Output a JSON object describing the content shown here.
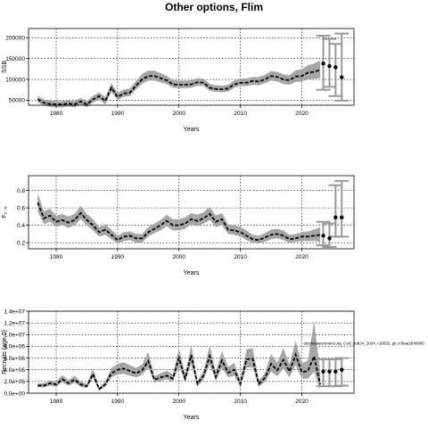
{
  "figure": {
    "title": "Other options, Flim"
  },
  "chart_data": [
    {
      "type": "line",
      "ylabel": "SSB",
      "xlabel": "Years",
      "xlim": [
        1975.5,
        2028.5
      ],
      "ylim": [
        38000,
        222000
      ],
      "xticks": [
        1980,
        1990,
        2000,
        2010,
        2020
      ],
      "yticks": [
        50000,
        100000,
        150000,
        200000
      ],
      "ytick_labels": [
        "50000",
        "100000",
        "150000",
        "200000"
      ],
      "grid": true,
      "annotation": "",
      "series": [
        {
          "x": [
            1977,
            1978,
            1979,
            1980,
            1981,
            1982,
            1983,
            1984,
            1985,
            1986,
            1987,
            1988,
            1989,
            1990,
            1991,
            1992,
            1993,
            1994,
            1995,
            1996,
            1997,
            1998,
            1999,
            2000,
            2001,
            2002,
            2003,
            2004,
            2005,
            2006,
            2007,
            2008,
            2009,
            2010,
            2011,
            2012,
            2013,
            2014,
            2015,
            2016,
            2017,
            2018,
            2019,
            2020,
            2021,
            2022,
            2023
          ],
          "y": [
            52000,
            44000,
            41000,
            40000,
            40000,
            42000,
            40000,
            47000,
            40000,
            52000,
            60000,
            48000,
            80000,
            58000,
            66000,
            68000,
            85000,
            100000,
            108000,
            108000,
            103000,
            98000,
            88000,
            87000,
            87000,
            88000,
            93000,
            92000,
            80000,
            77000,
            76000,
            78000,
            88000,
            92000,
            92000,
            96000,
            95000,
            100000,
            108000,
            106000,
            100000,
            98000,
            107000,
            108000,
            116000,
            118000,
            123000
          ],
          "lower": [
            45000,
            37000,
            34000,
            33000,
            33000,
            35000,
            33000,
            40000,
            33000,
            44000,
            52000,
            40000,
            70000,
            50000,
            58000,
            60000,
            76000,
            90000,
            97000,
            97000,
            93000,
            89000,
            80000,
            79000,
            79000,
            80000,
            85000,
            84000,
            73000,
            70000,
            69000,
            71000,
            80000,
            84000,
            84000,
            87000,
            86000,
            91000,
            97000,
            95000,
            89000,
            87000,
            94000,
            95000,
            100000,
            101000,
            104000
          ],
          "upper": [
            60000,
            52000,
            49000,
            48000,
            48000,
            50000,
            48000,
            55000,
            48000,
            61000,
            69000,
            57000,
            91000,
            67000,
            76000,
            78000,
            96000,
            113000,
            121000,
            121000,
            115000,
            109000,
            98000,
            97000,
            97000,
            98000,
            103000,
            102000,
            89000,
            86000,
            85000,
            87000,
            97000,
            102000,
            102000,
            106000,
            106000,
            111000,
            120000,
            118000,
            112000,
            110000,
            122000,
            124000,
            134000,
            138000,
            145000
          ]
        }
      ],
      "projections": [
        {
          "x": 2023.5,
          "y": 138000,
          "lower": 75000,
          "upper": 205000
        },
        {
          "x": 2024.5,
          "y": 132000,
          "lower": 82000,
          "upper": 197000
        },
        {
          "x": 2025.5,
          "y": 129000,
          "lower": 60000,
          "upper": 185000
        },
        {
          "x": 2026.5,
          "y": 105000,
          "lower": 49000,
          "upper": 210000
        }
      ]
    },
    {
      "type": "line",
      "ylabel": "F₂₋₆",
      "xlabel": "Years",
      "xlim": [
        1975.5,
        2028.5
      ],
      "ylim": [
        0.13,
        0.97
      ],
      "xticks": [
        1980,
        1990,
        2000,
        2010,
        2020
      ],
      "yticks": [
        0.2,
        0.4,
        0.6,
        0.8
      ],
      "ytick_labels": [
        "0.2",
        "0.4",
        "0.6",
        "0.8"
      ],
      "grid": true,
      "annotation": "",
      "series": [
        {
          "x": [
            1977,
            1978,
            1979,
            1980,
            1981,
            1982,
            1983,
            1984,
            1985,
            1986,
            1987,
            1988,
            1989,
            1990,
            1991,
            1992,
            1993,
            1994,
            1995,
            1996,
            1997,
            1998,
            1999,
            2000,
            2001,
            2002,
            2003,
            2004,
            2005,
            2006,
            2007,
            2008,
            2009,
            2010,
            2011,
            2012,
            2013,
            2014,
            2015,
            2016,
            2017,
            2018,
            2019,
            2020,
            2021,
            2022,
            2023
          ],
          "y": [
            0.66,
            0.48,
            0.51,
            0.44,
            0.46,
            0.43,
            0.46,
            0.54,
            0.46,
            0.4,
            0.32,
            0.35,
            0.29,
            0.23,
            0.27,
            0.28,
            0.25,
            0.25,
            0.32,
            0.36,
            0.4,
            0.45,
            0.4,
            0.4,
            0.42,
            0.47,
            0.45,
            0.48,
            0.53,
            0.44,
            0.47,
            0.35,
            0.34,
            0.32,
            0.28,
            0.24,
            0.23,
            0.26,
            0.29,
            0.3,
            0.28,
            0.24,
            0.25,
            0.27,
            0.27,
            0.28,
            0.29
          ],
          "lower": [
            0.56,
            0.41,
            0.44,
            0.38,
            0.4,
            0.37,
            0.4,
            0.47,
            0.4,
            0.34,
            0.27,
            0.29,
            0.24,
            0.19,
            0.22,
            0.23,
            0.2,
            0.2,
            0.27,
            0.31,
            0.34,
            0.39,
            0.34,
            0.34,
            0.36,
            0.41,
            0.39,
            0.42,
            0.46,
            0.38,
            0.4,
            0.3,
            0.29,
            0.27,
            0.23,
            0.2,
            0.19,
            0.21,
            0.24,
            0.25,
            0.23,
            0.2,
            0.21,
            0.22,
            0.22,
            0.22,
            0.21
          ],
          "upper": [
            0.77,
            0.56,
            0.59,
            0.51,
            0.53,
            0.5,
            0.53,
            0.62,
            0.53,
            0.47,
            0.38,
            0.41,
            0.35,
            0.28,
            0.32,
            0.33,
            0.3,
            0.3,
            0.38,
            0.42,
            0.46,
            0.52,
            0.47,
            0.47,
            0.49,
            0.54,
            0.52,
            0.55,
            0.61,
            0.51,
            0.54,
            0.41,
            0.4,
            0.38,
            0.34,
            0.29,
            0.28,
            0.31,
            0.35,
            0.36,
            0.34,
            0.29,
            0.3,
            0.32,
            0.33,
            0.35,
            0.38
          ]
        }
      ],
      "projections": [
        {
          "x": 2023.5,
          "y": 0.28,
          "lower": 0.17,
          "upper": 0.44
        },
        {
          "x": 2024.5,
          "y": 0.25,
          "lower": 0.15,
          "upper": 0.42
        },
        {
          "x": 2025.5,
          "y": 0.49,
          "lower": 0.27,
          "upper": 0.86
        },
        {
          "x": 2026.5,
          "y": 0.49,
          "lower": 0.27,
          "upper": 0.91
        }
      ]
    },
    {
      "type": "line",
      "ylabel": "Recruits (age 0)",
      "xlabel": "Years",
      "xlim": [
        1975.5,
        2028.5
      ],
      "ylim": [
        0,
        14000000
      ],
      "xticks": [
        1980,
        1990,
        2000,
        2010,
        2020
      ],
      "yticks": [
        0,
        2000000,
        4000000,
        6000000,
        8000000,
        10000000,
        12000000,
        14000000
      ],
      "ytick_labels": [
        "0.0e+00",
        "2.0e+06",
        "4.0e+06",
        "6.0e+06",
        "8.0e+06",
        "1.0e+07",
        "1.2e+07",
        "1.4e+07"
      ],
      "grid": true,
      "annotation": "stockassessment.org, Cod_sub24_2024, r18032, git e38ae2b49960",
      "series": [
        {
          "x": [
            1977,
            1978,
            1979,
            1980,
            1981,
            1982,
            1983,
            1984,
            1985,
            1986,
            1987,
            1988,
            1989,
            1990,
            1991,
            1992,
            1993,
            1994,
            1995,
            1996,
            1997,
            1998,
            1999,
            2000,
            2001,
            2002,
            2003,
            2004,
            2005,
            2006,
            2007,
            2008,
            2009,
            2010,
            2011,
            2012,
            2013,
            2014,
            2015,
            2016,
            2017,
            2018,
            2019,
            2020,
            2021,
            2022,
            2023
          ],
          "y": [
            1300000,
            1300000,
            1700000,
            1500000,
            2400000,
            1700000,
            2300000,
            1500000,
            1200000,
            3300000,
            700000,
            1500000,
            3400000,
            4000000,
            4200000,
            3800000,
            3400000,
            3900000,
            5500000,
            2300000,
            2700000,
            3000000,
            2500000,
            6000000,
            2500000,
            6500000,
            1600000,
            3000000,
            6300000,
            2800000,
            5600000,
            3500000,
            4000000,
            1600000,
            5800000,
            5900000,
            1600000,
            2600000,
            5000000,
            3900000,
            5700000,
            3700000,
            6600000,
            3600000,
            3800000,
            6300000,
            1500000
          ],
          "lower": [
            1000000,
            1000000,
            1300000,
            1100000,
            1900000,
            1300000,
            1800000,
            1100000,
            900000,
            2600000,
            500000,
            1100000,
            2700000,
            3200000,
            3300000,
            3000000,
            2700000,
            3100000,
            4400000,
            1800000,
            2100000,
            2400000,
            1900000,
            4700000,
            1900000,
            5000000,
            1200000,
            2300000,
            4900000,
            2100000,
            4300000,
            2700000,
            3000000,
            1100000,
            4400000,
            4400000,
            1100000,
            1900000,
            3700000,
            2900000,
            4200000,
            2700000,
            4800000,
            2500000,
            2500000,
            3700000,
            600000
          ],
          "upper": [
            1700000,
            1700000,
            2200000,
            2000000,
            3100000,
            2200000,
            3000000,
            2000000,
            1600000,
            4200000,
            1000000,
            2000000,
            4300000,
            5000000,
            5300000,
            4800000,
            4300000,
            4900000,
            7000000,
            2900000,
            3400000,
            3800000,
            3200000,
            7600000,
            3200000,
            8300000,
            2100000,
            3800000,
            8100000,
            3600000,
            7200000,
            4500000,
            5200000,
            2200000,
            7500000,
            7700000,
            2200000,
            3400000,
            6700000,
            5200000,
            7700000,
            5000000,
            9000000,
            5100000,
            5600000,
            12300000,
            3700000
          ]
        }
      ],
      "projections": [
        {
          "x": 2023.5,
          "y": 3700000,
          "lower": 1200000,
          "upper": 5800000
        },
        {
          "x": 2024.5,
          "y": 3700000,
          "lower": 1200000,
          "upper": 5800000
        },
        {
          "x": 2025.5,
          "y": 3700000,
          "lower": 1200000,
          "upper": 5800000
        },
        {
          "x": 2026.5,
          "y": 4000000,
          "lower": 1300000,
          "upper": 6000000
        }
      ]
    }
  ]
}
